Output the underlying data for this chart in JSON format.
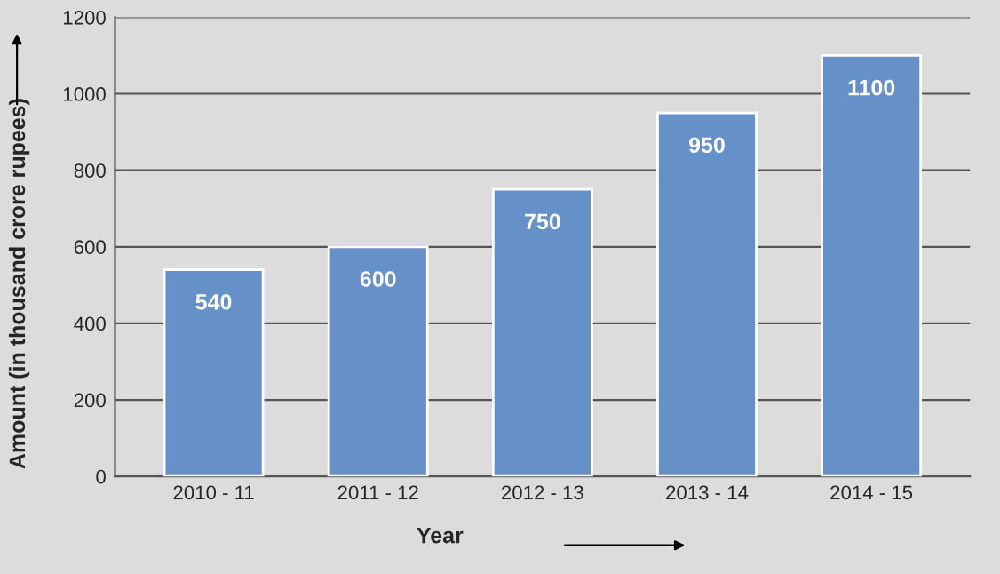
{
  "chart_data": {
    "type": "bar",
    "xlabel": "Year",
    "ylabel": "Amount (in thousand crore rupees)",
    "categories": [
      "2010 - 11",
      "2011 - 12",
      "2012 - 13",
      "2013 - 14",
      "2014 - 15"
    ],
    "values": [
      540,
      600,
      750,
      950,
      1100
    ],
    "color": "#6690c8",
    "ylim": [
      0,
      1200
    ],
    "yticks": [
      0,
      200,
      400,
      600,
      800,
      1000,
      1200
    ],
    "grid": "y",
    "data_labels": true
  }
}
